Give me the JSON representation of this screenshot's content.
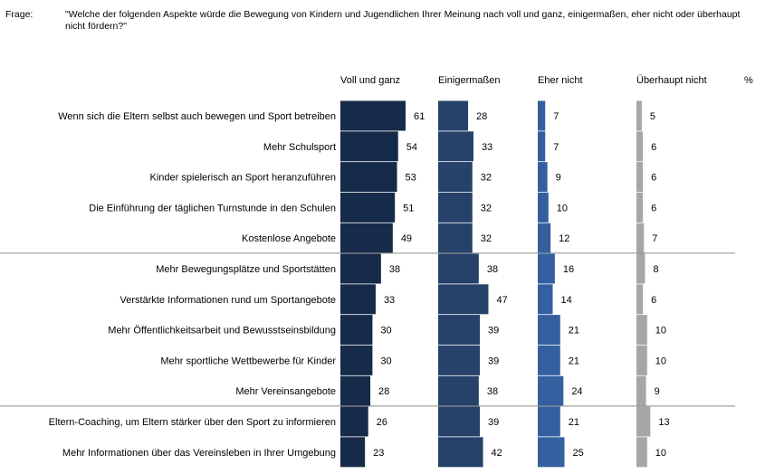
{
  "header": {
    "frage_label": "Frage:",
    "question": "\"Welche der folgenden Aspekte würde die Bewegung von Kindern und Jugendlichen Ihrer Meinung nach voll und ganz, einigermaßen, eher nicht oder überhaupt nicht fördern?\""
  },
  "chart_data": {
    "type": "bar",
    "unit_label": "%",
    "categories": [
      "Wenn sich die Eltern selbst auch bewegen und Sport betreiben",
      "Mehr Schulsport",
      "Kinder spielerisch an Sport heranzuführen",
      "Die Einführung der täglichen Turnstunde in den Schulen",
      "Kostenlose Angebote",
      "Mehr Bewegungsplätze und Sportstätten",
      "Verstärkte Informationen rund um Sportangebote",
      "Mehr Öffentlichkeitsarbeit und Bewusstseinsbildung",
      "Mehr sportliche Wettbewerbe für Kinder",
      "Mehr Vereinsangebote",
      "Eltern-Coaching, um Eltern stärker über den Sport zu informieren",
      "Mehr Informationen über das Vereinsleben in Ihrer Umgebung"
    ],
    "group_breaks_after": [
      4,
      9
    ],
    "series": [
      {
        "name": "Voll und ganz",
        "color": "#162a4a",
        "values": [
          61,
          54,
          53,
          51,
          49,
          38,
          33,
          30,
          30,
          28,
          26,
          23
        ]
      },
      {
        "name": "Einigermaßen",
        "color": "#26416a",
        "values": [
          28,
          33,
          32,
          32,
          32,
          38,
          47,
          39,
          39,
          38,
          39,
          42
        ]
      },
      {
        "name": "Eher nicht",
        "color": "#3560a0",
        "values": [
          7,
          7,
          9,
          10,
          12,
          16,
          14,
          21,
          21,
          24,
          21,
          25
        ]
      },
      {
        "name": "Überhaupt nicht",
        "color": "#a6a6a6",
        "values": [
          5,
          6,
          6,
          6,
          7,
          8,
          6,
          10,
          10,
          9,
          13,
          10
        ]
      }
    ]
  }
}
